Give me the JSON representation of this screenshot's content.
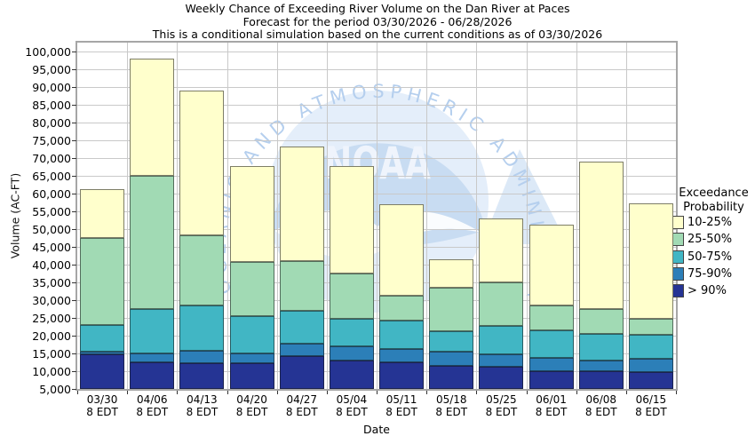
{
  "title": {
    "line1": "Weekly Chance of Exceeding River Volume on the Dan River at Paces",
    "line2": "Forecast for the period 03/30/2026 - 06/28/2026",
    "line3": "This is a conditional simulation based on the current conditions as of 03/30/2026"
  },
  "axes": {
    "y": {
      "label": "Volume (AC-FT)",
      "min": 5000,
      "max": 100000,
      "step": 5000
    },
    "x": {
      "label": "Date",
      "sublabel": "8 EDT"
    }
  },
  "legend": {
    "title_line1": "Exceedance",
    "title_line2": "Probability",
    "items": [
      {
        "label": "10-25%",
        "color": "#FFFFCC"
      },
      {
        "label": "25-50%",
        "color": "#A1DAB4"
      },
      {
        "label": "50-75%",
        "color": "#41B6C4"
      },
      {
        "label": "75-90%",
        "color": "#2C7FB8"
      },
      {
        "label": "> 90%",
        "color": "#253494"
      }
    ]
  },
  "watermark": {
    "arc_text": "OCEANIC AND ATMOSPHERIC ADMINISTRA",
    "center_text": "NOAA"
  },
  "chart_data": {
    "type": "bar",
    "stacked": true,
    "title": "Weekly Chance of Exceeding River Volume on the Dan River at Paces",
    "subtitle": "Forecast for the period 03/30/2026 - 06/28/2026",
    "note": "This is a conditional simulation based on the current conditions as of 03/30/2026",
    "xlabel": "Date",
    "ylabel": "Volume (AC-FT)",
    "ylim": [
      5000,
      100000
    ],
    "baseline": 5000,
    "grid": true,
    "legend_position": "right",
    "categories": [
      "03/30",
      "04/06",
      "04/13",
      "04/20",
      "04/27",
      "05/04",
      "05/11",
      "05/18",
      "05/25",
      "06/01",
      "06/08",
      "06/15"
    ],
    "category_sublabel": "8 EDT",
    "series": [
      {
        "name": "> 90%",
        "color": "#253494",
        "cumulative_tops": [
          14800,
          12500,
          12200,
          12200,
          14200,
          13000,
          12400,
          11600,
          11200,
          9900,
          9900,
          9700
        ]
      },
      {
        "name": "75-90%",
        "color": "#2C7FB8",
        "cumulative_tops": [
          15500,
          14900,
          15700,
          15100,
          17700,
          17000,
          16300,
          15500,
          14800,
          13700,
          13000,
          13400
        ]
      },
      {
        "name": "50-75%",
        "color": "#41B6C4",
        "cumulative_tops": [
          23000,
          27500,
          28600,
          25500,
          27000,
          24800,
          24300,
          21200,
          22800,
          21400,
          20600,
          20300
        ]
      },
      {
        "name": "25-50%",
        "color": "#A1DAB4",
        "cumulative_tops": [
          47600,
          64900,
          48300,
          40800,
          40900,
          37400,
          31300,
          33400,
          34900,
          28600,
          27400,
          24700
        ]
      },
      {
        "name": "10-25%",
        "color": "#FFFFCC",
        "cumulative_tops": [
          61300,
          98100,
          89000,
          67800,
          73300,
          67700,
          57100,
          41400,
          53100,
          51200,
          69100,
          57300
        ]
      }
    ]
  },
  "style_colors": {
    "gridline": "#c9c9c9",
    "plot_border": "#a6a6a6",
    "segment_outline": "rgba(20,20,20,0.55)",
    "watermark_dome": "#c8dcf2",
    "watermark_light": "#e4eefa",
    "watermark_text": "#b5cfee",
    "watermark_letters": "#eff4fc"
  }
}
